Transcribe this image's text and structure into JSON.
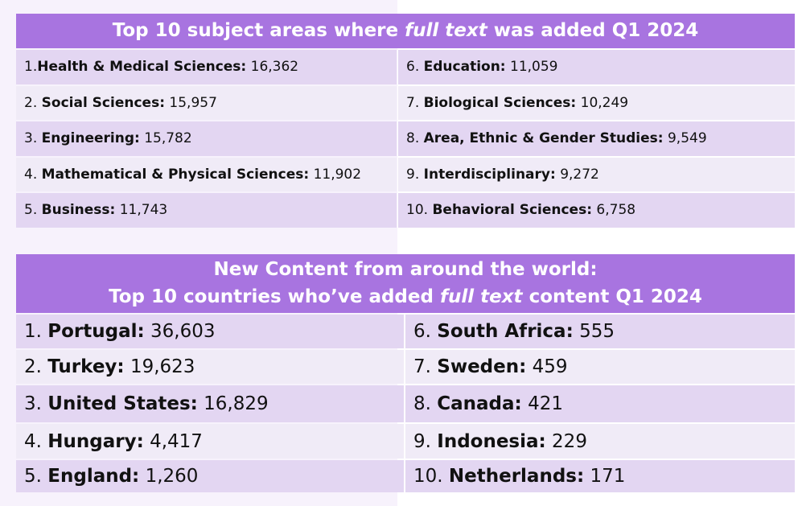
{
  "subjects": {
    "header_parts": [
      "Top 10 subject areas where ",
      "full text",
      " was added Q1 2024"
    ],
    "items": [
      {
        "rank": "1.",
        "name": "Health & Medical Sciences:",
        "value": "16,362"
      },
      {
        "rank": "2.",
        "name": "Social Sciences:",
        "value": "15,957"
      },
      {
        "rank": "3.",
        "name": "Engineering:",
        "value": "15,782"
      },
      {
        "rank": "4.",
        "name": "Mathematical & Physical Sciences:",
        "value": "11,902"
      },
      {
        "rank": "5.",
        "name": "Business:",
        "value": "11,743"
      },
      {
        "rank": "6.",
        "name": "Education:",
        "value": "11,059"
      },
      {
        "rank": "7.",
        "name": "Biological Sciences:",
        "value": "10,249"
      },
      {
        "rank": "8.",
        "name": "Area, Ethnic & Gender Studies:",
        "value": "9,549"
      },
      {
        "rank": "9.",
        "name": "Interdisciplinary:",
        "value": "9,272"
      },
      {
        "rank": "10.",
        "name": "Behavioral Sciences:",
        "value": "6,758"
      }
    ]
  },
  "countries": {
    "header_line1": "New Content from around the world:",
    "header_line2_parts": [
      "Top 10 countries who’ve added ",
      "full text",
      " content Q1 2024"
    ],
    "items": [
      {
        "rank": "1.",
        "name": "Portugal:",
        "value": "36,603"
      },
      {
        "rank": "2.",
        "name": "Turkey:",
        "value": "19,623"
      },
      {
        "rank": "3.",
        "name": "United States:",
        "value": "16,829"
      },
      {
        "rank": "4.",
        "name": "Hungary:",
        "value": "4,417"
      },
      {
        "rank": "5.",
        "name": "England:",
        "value": "1,260"
      },
      {
        "rank": "6.",
        "name": "South Africa:",
        "value": "555"
      },
      {
        "rank": "7.",
        "name": "Sweden:",
        "value": "459"
      },
      {
        "rank": "8.",
        "name": "Canada:",
        "value": "421"
      },
      {
        "rank": "9.",
        "name": "Indonesia:",
        "value": "229"
      },
      {
        "rank": "10.",
        "name": "Netherlands:",
        "value": "171"
      }
    ]
  },
  "colors": {
    "header_bg": "#a874e0",
    "row_dark": "#e3d6f2",
    "row_light": "#f0ebf7",
    "page_left_bg": "#f7f2fc"
  }
}
